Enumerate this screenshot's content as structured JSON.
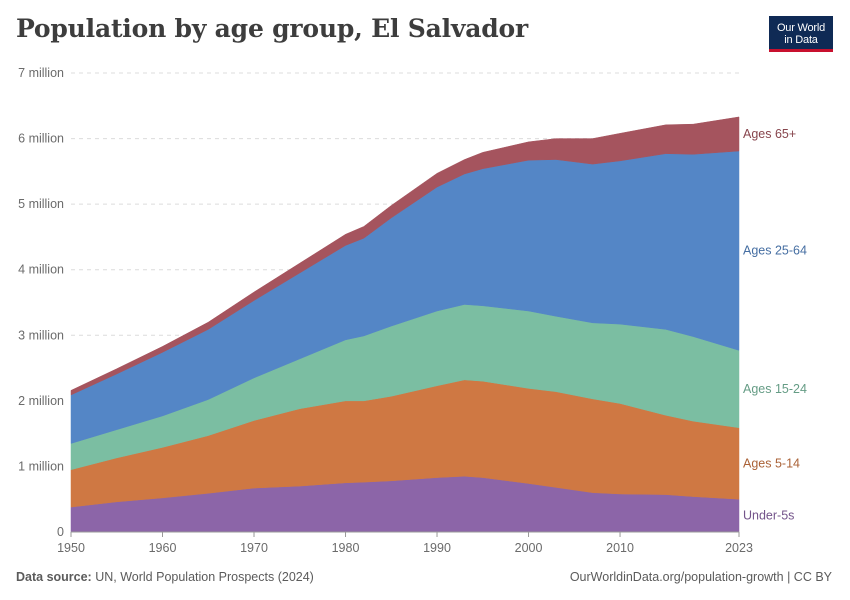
{
  "header": {
    "title": "Population by age group, El Salvador",
    "logo_line1": "Our World",
    "logo_line2": "in Data"
  },
  "footer": {
    "source_label": "Data source:",
    "source_text": "UN, World Population Prospects (2024)",
    "link_text": "OurWorldinData.org/population-growth | CC BY"
  },
  "chart_data": {
    "type": "area",
    "stacked": true,
    "title": "Population by age group, El Salvador",
    "xlabel": "",
    "ylabel": "",
    "xlim": [
      1950,
      2023
    ],
    "ylim": [
      0,
      7000000
    ],
    "x_ticks": [
      1950,
      1960,
      1970,
      1980,
      1990,
      2000,
      2010,
      2023
    ],
    "y_ticks": [
      {
        "value": 0,
        "label": "0"
      },
      {
        "value": 1000000,
        "label": "1 million"
      },
      {
        "value": 2000000,
        "label": "2 million"
      },
      {
        "value": 3000000,
        "label": "3 million"
      },
      {
        "value": 4000000,
        "label": "4 million"
      },
      {
        "value": 5000000,
        "label": "5 million"
      },
      {
        "value": 6000000,
        "label": "6 million"
      },
      {
        "value": 7000000,
        "label": "7 million"
      }
    ],
    "grid": true,
    "x": [
      1950,
      1955,
      1960,
      1965,
      1970,
      1975,
      1980,
      1982,
      1985,
      1990,
      1993,
      1995,
      2000,
      2003,
      2007,
      2010,
      2015,
      2018,
      2023
    ],
    "series": [
      {
        "name": "Under-5s",
        "color": "#8c65a8",
        "values": [
          380000,
          460000,
          520000,
          590000,
          670000,
          700000,
          750000,
          760000,
          780000,
          830000,
          850000,
          830000,
          740000,
          680000,
          600000,
          580000,
          570000,
          540000,
          500000
        ]
      },
      {
        "name": "Ages 5-14",
        "color": "#cf7843",
        "values": [
          570000,
          670000,
          770000,
          880000,
          1030000,
          1180000,
          1250000,
          1240000,
          1290000,
          1400000,
          1470000,
          1470000,
          1450000,
          1460000,
          1430000,
          1380000,
          1210000,
          1150000,
          1090000
        ]
      },
      {
        "name": "Ages 15-24",
        "color": "#7bbea2",
        "values": [
          400000,
          430000,
          480000,
          550000,
          650000,
          760000,
          930000,
          990000,
          1070000,
          1140000,
          1150000,
          1150000,
          1180000,
          1150000,
          1160000,
          1210000,
          1310000,
          1290000,
          1180000
        ]
      },
      {
        "name": "Ages 25-64",
        "color": "#5486c6",
        "values": [
          740000,
          850000,
          970000,
          1070000,
          1180000,
          1310000,
          1440000,
          1490000,
          1650000,
          1890000,
          1990000,
          2090000,
          2300000,
          2390000,
          2420000,
          2490000,
          2680000,
          2780000,
          3040000
        ]
      },
      {
        "name": "Ages 65+",
        "color": "#a5545e",
        "values": [
          70000,
          80000,
          90000,
          110000,
          130000,
          150000,
          170000,
          180000,
          190000,
          210000,
          220000,
          250000,
          280000,
          320000,
          390000,
          420000,
          440000,
          460000,
          520000
        ]
      }
    ]
  }
}
